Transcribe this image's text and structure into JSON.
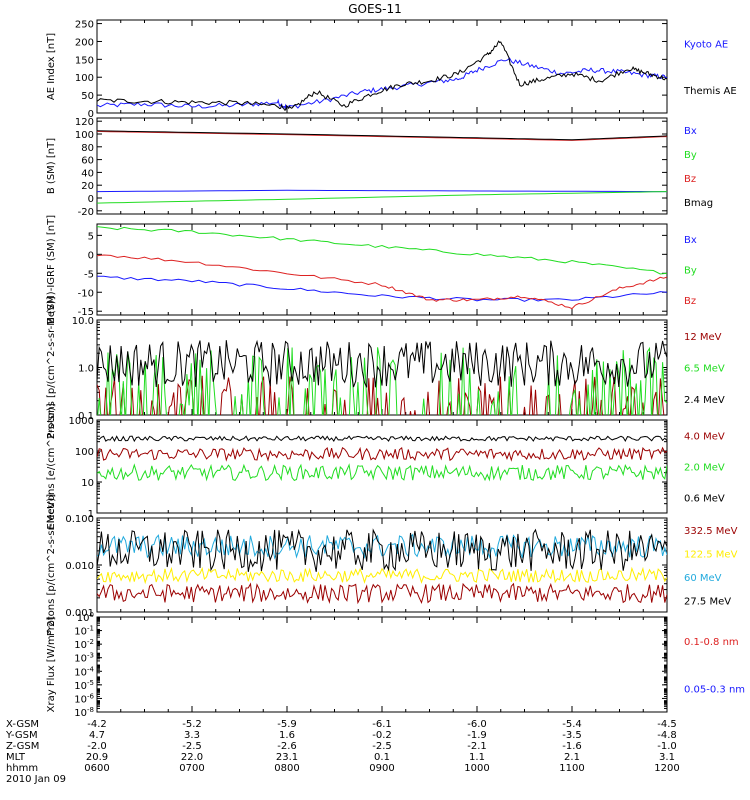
{
  "title": "GOES-11",
  "colors": {
    "black": "#000000",
    "blue": "#1a1aff",
    "green": "#22dd22",
    "red": "#dd2222",
    "darkred": "#9b0000",
    "yellow": "#ffee00",
    "cyan": "#22aadd"
  },
  "chart_data": [
    {
      "type": "line",
      "id": "ae",
      "ylabel": "AE Index [nT]",
      "yticks": [
        0,
        50,
        100,
        150,
        200,
        250
      ],
      "ylim": [
        0,
        260
      ],
      "scale": "linear",
      "series": [
        {
          "name": "Kyoto AE",
          "color": "blue",
          "points": [
            [
              6.0,
              20
            ],
            [
              6.5,
              25
            ],
            [
              7.0,
              18
            ],
            [
              7.5,
              22
            ],
            [
              7.9,
              30
            ],
            [
              8.0,
              15
            ],
            [
              8.4,
              35
            ],
            [
              8.8,
              60
            ],
            [
              9.1,
              70
            ],
            [
              9.5,
              85
            ],
            [
              9.8,
              95
            ],
            [
              10.0,
              120
            ],
            [
              10.3,
              150
            ],
            [
              10.6,
              130
            ],
            [
              10.9,
              110
            ],
            [
              11.2,
              120
            ],
            [
              11.5,
              115
            ],
            [
              11.8,
              105
            ],
            [
              12.0,
              100
            ]
          ]
        },
        {
          "name": "Themis AE",
          "color": "black",
          "points": [
            [
              6.0,
              35
            ],
            [
              6.5,
              33
            ],
            [
              7.0,
              30
            ],
            [
              7.5,
              28
            ],
            [
              7.9,
              20
            ],
            [
              8.05,
              10
            ],
            [
              8.3,
              60
            ],
            [
              8.6,
              20
            ],
            [
              8.9,
              55
            ],
            [
              9.2,
              80
            ],
            [
              9.5,
              90
            ],
            [
              9.8,
              110
            ],
            [
              10.1,
              160
            ],
            [
              10.25,
              200
            ],
            [
              10.45,
              80
            ],
            [
              10.7,
              95
            ],
            [
              11.0,
              110
            ],
            [
              11.3,
              90
            ],
            [
              11.6,
              125
            ],
            [
              11.8,
              110
            ],
            [
              12.0,
              95
            ]
          ]
        }
      ]
    },
    {
      "type": "line",
      "id": "bsm",
      "ylabel": "B (SM) [nT]",
      "yticks": [
        -20,
        0,
        20,
        40,
        60,
        80,
        100,
        120
      ],
      "ylim": [
        -25,
        125
      ],
      "scale": "linear",
      "series": [
        {
          "name": "Bx",
          "color": "blue",
          "points": [
            [
              6,
              10
            ],
            [
              8,
              12
            ],
            [
              10,
              11
            ],
            [
              12,
              10
            ]
          ]
        },
        {
          "name": "By",
          "color": "green",
          "points": [
            [
              6,
              -8
            ],
            [
              8,
              -2
            ],
            [
              10,
              5
            ],
            [
              12,
              10
            ]
          ]
        },
        {
          "name": "Bz",
          "color": "red",
          "points": [
            [
              6,
              104
            ],
            [
              8,
              99
            ],
            [
              10,
              93
            ],
            [
              11,
              90
            ],
            [
              12,
              96
            ]
          ]
        },
        {
          "name": "Bmag",
          "color": "black",
          "points": [
            [
              6,
              105
            ],
            [
              8,
              100
            ],
            [
              10,
              94
            ],
            [
              11,
              91
            ],
            [
              12,
              97
            ]
          ]
        }
      ]
    },
    {
      "type": "line",
      "id": "bsm_igrf",
      "ylabel": "B (SM)-IGRF (SM) [nT]",
      "yticks": [
        -15,
        -10,
        -5,
        0,
        5
      ],
      "ylim": [
        -16,
        8
      ],
      "scale": "linear",
      "series": [
        {
          "name": "Bx",
          "color": "blue",
          "points": [
            [
              6,
              -6
            ],
            [
              7,
              -7
            ],
            [
              8,
              -9
            ],
            [
              9,
              -11
            ],
            [
              10,
              -12
            ],
            [
              11,
              -12
            ],
            [
              12,
              -10
            ]
          ]
        },
        {
          "name": "By",
          "color": "green",
          "points": [
            [
              6,
              7
            ],
            [
              7,
              6
            ],
            [
              8,
              4
            ],
            [
              9,
              2
            ],
            [
              10,
              0
            ],
            [
              11,
              -2
            ],
            [
              12,
              -5
            ]
          ]
        },
        {
          "name": "Bz",
          "color": "red",
          "points": [
            [
              6,
              0
            ],
            [
              7,
              -2
            ],
            [
              8,
              -5
            ],
            [
              9,
              -8
            ],
            [
              9.5,
              -12
            ],
            [
              10,
              -12
            ],
            [
              10.5,
              -11
            ],
            [
              11,
              -14
            ],
            [
              11.5,
              -9
            ],
            [
              12,
              -6
            ]
          ]
        }
      ]
    },
    {
      "type": "line",
      "id": "protons_lo",
      "ylabel": "Protons [p/(cm^2-s-sr-MeV)]",
      "ytick_labels": [
        "0.1",
        "1.0",
        "10.0"
      ],
      "ylim": [
        0.1,
        10
      ],
      "scale": "log",
      "series": [
        {
          "name": "12 MeV",
          "color": "darkred",
          "base": 0.12,
          "amp": 0.3,
          "noise": "sparse"
        },
        {
          "name": "6.5 MeV",
          "color": "green",
          "base": 0.15,
          "amp": 0.5,
          "noise": "sparse"
        },
        {
          "name": "2.4 MeV",
          "color": "black",
          "base": 1.2,
          "amp": 0.5,
          "noise": "dense"
        }
      ]
    },
    {
      "type": "line",
      "id": "electrons",
      "ylabel": "Electrons [e/(cm^2-s-sr)]",
      "ytick_labels": [
        "1",
        "10",
        "100",
        "1000"
      ],
      "ylim": [
        1,
        1000
      ],
      "scale": "log",
      "series": [
        {
          "name": "4.0 MeV",
          "color": "darkred",
          "base": 80,
          "amp": 0.2,
          "noise": "dense"
        },
        {
          "name": "2.0 MeV",
          "color": "green",
          "base": 20,
          "amp": 0.25,
          "noise": "dense"
        },
        {
          "name": "0.6 MeV",
          "color": "black",
          "base": 250,
          "amp": 0.08,
          "noise": "dense"
        }
      ]
    },
    {
      "type": "line",
      "id": "protons_hi",
      "ylabel": "Protons [p/(cm^2-s-sr-MeV)]",
      "ytick_labels": [
        "0.001",
        "0.010",
        "0.100"
      ],
      "ylim": [
        0.001,
        0.1
      ],
      "scale": "log",
      "series": [
        {
          "name": "332.5 MeV",
          "color": "darkred",
          "base": 0.0025,
          "amp": 0.2,
          "noise": "dense"
        },
        {
          "name": "122.5 MeV",
          "color": "yellow",
          "base": 0.006,
          "amp": 0.15,
          "noise": "dense"
        },
        {
          "name": "60 MeV",
          "color": "cyan",
          "base": 0.025,
          "amp": 0.25,
          "noise": "dense"
        },
        {
          "name": "27.5 MeV",
          "color": "black",
          "base": 0.02,
          "amp": 0.45,
          "noise": "dense"
        }
      ]
    },
    {
      "type": "line",
      "id": "xray",
      "ylabel": "Xray Flux [W/m^2]",
      "ytick_labels": [
        "10^-8",
        "10^-6",
        "10^-5",
        "10^-4",
        "10^-3",
        "10^-2",
        "10^-1",
        "10^0"
      ],
      "ylim": [
        1e-08,
        1
      ],
      "scale": "log",
      "series": [
        {
          "name": "0.1-0.8 nm",
          "color": "red"
        },
        {
          "name": "0.05-0.3 nm",
          "color": "blue"
        }
      ]
    }
  ],
  "xaxis": {
    "xlim": [
      6,
      12
    ],
    "ticks": [
      {
        "x": 6,
        "xgsm": "-4.2",
        "ygsm": "4.7",
        "zgsm": "-2.0",
        "mlt": "20.9",
        "hhmm": "0600"
      },
      {
        "x": 7,
        "xgsm": "-5.2",
        "ygsm": "3.3",
        "zgsm": "-2.5",
        "mlt": "22.0",
        "hhmm": "0700"
      },
      {
        "x": 8,
        "xgsm": "-5.9",
        "ygsm": "1.6",
        "zgsm": "-2.6",
        "mlt": "23.1",
        "hhmm": "0800"
      },
      {
        "x": 9,
        "xgsm": "-6.1",
        "ygsm": "-0.2",
        "zgsm": "-2.5",
        "mlt": "0.1",
        "hhmm": "0900"
      },
      {
        "x": 10,
        "xgsm": "-6.0",
        "ygsm": "-1.9",
        "zgsm": "-2.1",
        "mlt": "1.1",
        "hhmm": "1000"
      },
      {
        "x": 11,
        "xgsm": "-5.4",
        "ygsm": "-3.5",
        "zgsm": "-1.6",
        "mlt": "2.1",
        "hhmm": "1100"
      },
      {
        "x": 12,
        "xgsm": "-4.5",
        "ygsm": "-4.8",
        "zgsm": "-1.0",
        "mlt": "3.1",
        "hhmm": "1200"
      }
    ],
    "row_labels": [
      "X-GSM",
      "Y-GSM",
      "Z-GSM",
      "MLT",
      "hhmm"
    ],
    "date": "2010 Jan 09"
  }
}
